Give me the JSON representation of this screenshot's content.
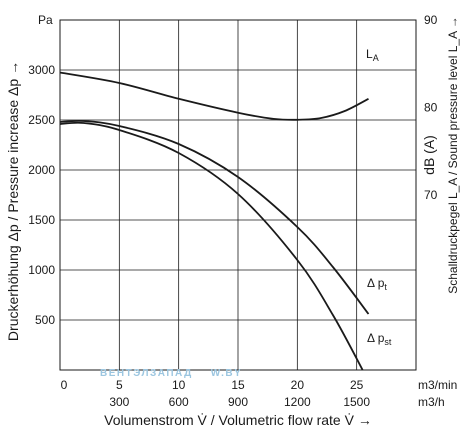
{
  "chart_data": {
    "type": "line",
    "y_left": {
      "unit": "Pa",
      "label": "Druckerhöhung Δp / Pressure increase Δp  →",
      "ticks": [
        "500",
        "1000",
        "1500",
        "2000",
        "2500",
        "3000"
      ],
      "range": [
        0,
        3500
      ]
    },
    "y_right": {
      "unit": "90",
      "label": "Schalldruckpegel L_A / Sound pressure level L_A  →",
      "mid_label": "dB (A)",
      "ticks": [
        "70",
        "80"
      ],
      "range": [
        50,
        90
      ]
    },
    "x": {
      "label": "Volumenstrom V̇ / Volumetric flow rate V̇  →",
      "ticks_m3min": [
        "0",
        "5",
        "10",
        "15",
        "20",
        "25"
      ],
      "ticks_m3h": [
        "300",
        "600",
        "900",
        "1200",
        "1500"
      ],
      "unit_m3min": "m3/min",
      "unit_m3h": "m3/h",
      "range": [
        0,
        30
      ]
    },
    "series": [
      {
        "name": "LA",
        "axis": "right",
        "points": [
          [
            0,
            84.0
          ],
          [
            5,
            82.8
          ],
          [
            10,
            81.0
          ],
          [
            15,
            79.4
          ],
          [
            18,
            78.7
          ],
          [
            20,
            78.6
          ],
          [
            22,
            78.8
          ],
          [
            24,
            79.6
          ],
          [
            26,
            81.0
          ]
        ]
      },
      {
        "name": "Δ pt",
        "axis": "left",
        "points": [
          [
            0,
            2480
          ],
          [
            2,
            2490
          ],
          [
            5,
            2440
          ],
          [
            10,
            2260
          ],
          [
            15,
            1930
          ],
          [
            20,
            1430
          ],
          [
            23,
            1030
          ],
          [
            26,
            560
          ]
        ]
      },
      {
        "name": "Δ pst",
        "axis": "left",
        "points": [
          [
            0,
            2460
          ],
          [
            2,
            2470
          ],
          [
            5,
            2400
          ],
          [
            10,
            2170
          ],
          [
            15,
            1760
          ],
          [
            20,
            1100
          ],
          [
            23,
            550
          ],
          [
            25.5,
            0
          ]
        ]
      }
    ]
  },
  "labels": {
    "la_main": "L",
    "la_sub": "A",
    "pt_main": "Δ p",
    "pt_sub": "t",
    "pst_main": "Δ p",
    "pst_sub": "st"
  },
  "watermark": {
    "text": "ВЕНТЭЛЗАПАД",
    "suffix": "W.BY"
  }
}
